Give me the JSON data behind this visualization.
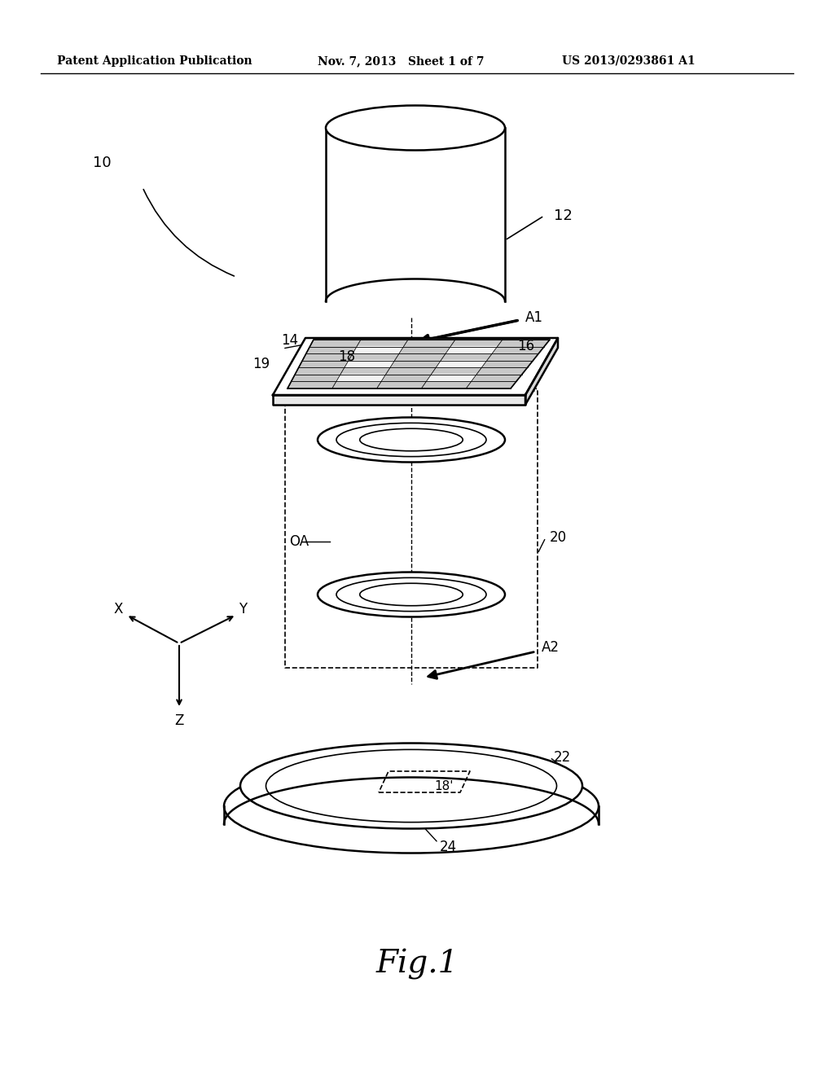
{
  "bg_color": "#ffffff",
  "line_color": "#000000",
  "header_left": "Patent Application Publication",
  "header_mid": "Nov. 7, 2013   Sheet 1 of 7",
  "header_right": "US 2013/0293861 A1",
  "caption": "Fig.1",
  "label_10": "10",
  "label_12": "12",
  "label_14": "14",
  "label_16": "16",
  "label_18": "18",
  "label_18p": "18'",
  "label_19": "19",
  "label_20": "20",
  "label_22": "22",
  "label_24": "24",
  "label_OA": "OA",
  "label_A1": "A1",
  "label_A2": "A2",
  "label_X": "X",
  "label_Y": "Y",
  "label_Z": "Z"
}
